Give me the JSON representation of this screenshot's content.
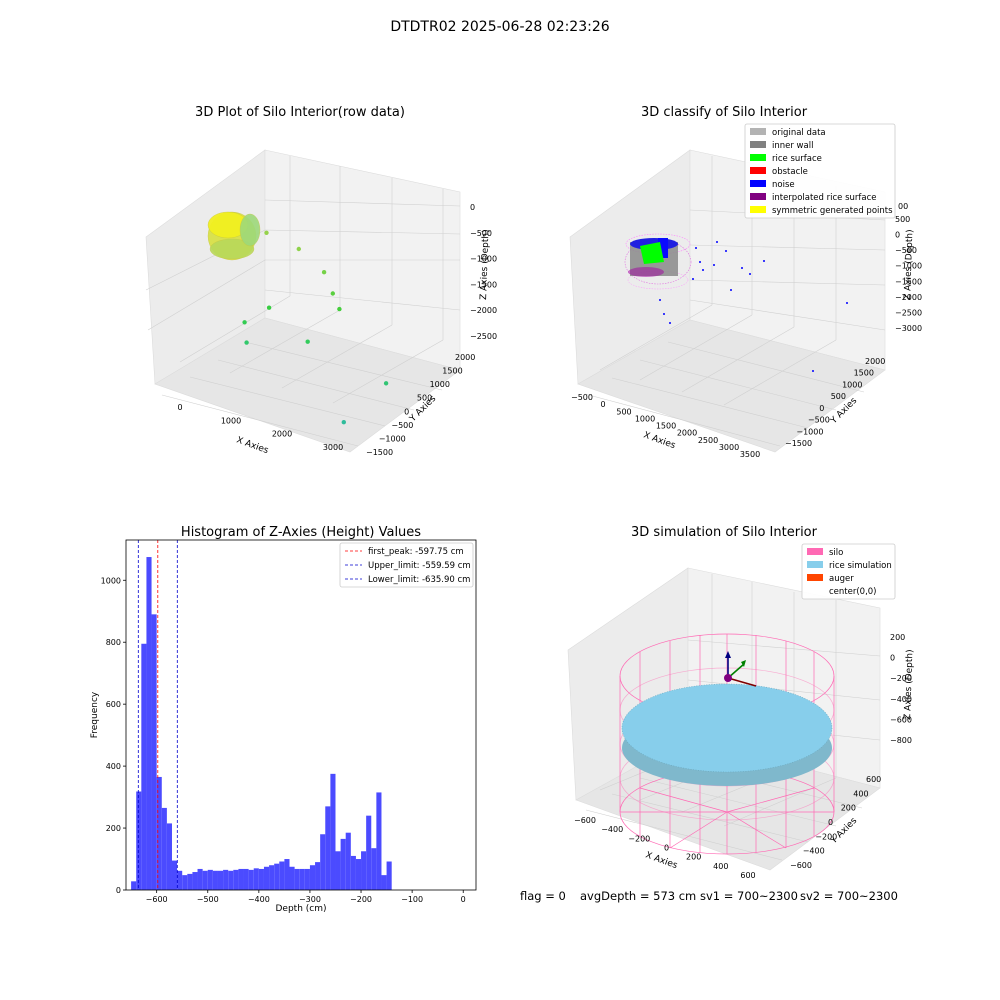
{
  "suptitle": "DTDTR02 2025-06-28 02:23:26",
  "status_bar": {
    "flag": "flag = 0",
    "avg_depth": "avgDepth = 573 cm",
    "sv1": "sv1 = 700~2300",
    "sv2": "sv2 = 700~2300"
  },
  "colors": {
    "original_data": "#b3b3b3",
    "inner_wall": "#808080",
    "rice_surface": "#00ff00",
    "obstacle": "#ff0000",
    "noise": "#0000ff",
    "interpolated_rice_surface": "#800080",
    "symmetric_generated_points": "#ffff00",
    "silo": "#ff69b4",
    "rice_simulation": "#87ceeb",
    "auger": "#ff4500",
    "histogram_bar": "#4b4bff"
  },
  "chart_data": [
    {
      "type": "scatter",
      "title": "3D Plot of Silo Interior(row data)",
      "xlabel": "X Axies",
      "ylabel": "Y Axies",
      "zlabel": "Z Axies (Depth)",
      "x_ticks": [
        "0",
        "1000",
        "2000",
        "3000"
      ],
      "y_ticks": [
        "−1500",
        "−1000",
        "−500",
        "0",
        "500",
        "1000",
        "1500",
        "2000"
      ],
      "z_ticks": [
        "0",
        "−500",
        "−1000",
        "−1500",
        "−2000",
        "−2500"
      ],
      "xlim": [
        -500,
        3800
      ],
      "ylim": [
        -1600,
        2200
      ],
      "zlim": [
        -2800,
        100
      ],
      "colormap": "viridis",
      "points": [
        {
          "x": 150,
          "y": 1300,
          "z": -600
        },
        {
          "x": 900,
          "y": 1200,
          "z": -700
        },
        {
          "x": 1500,
          "y": 1100,
          "z": -950
        },
        {
          "x": 1800,
          "y": 900,
          "z": -1200
        },
        {
          "x": 2000,
          "y": 800,
          "z": -1400
        },
        {
          "x": 600,
          "y": 600,
          "z": -1600
        },
        {
          "x": 300,
          "y": 200,
          "z": -1800
        },
        {
          "x": 400,
          "y": 100,
          "z": -2100
        },
        {
          "x": 1600,
          "y": 300,
          "z": -1900
        },
        {
          "x": 3400,
          "y": 100,
          "z": -2200
        },
        {
          "x": 3000,
          "y": -800,
          "z": -2700
        }
      ]
    },
    {
      "type": "scatter",
      "title": "3D classify of Silo Interior",
      "xlabel": "X Axies",
      "ylabel": "Y Axies",
      "zlabel": "Z Axies (Depth)",
      "x_ticks": [
        "−500",
        "0",
        "500",
        "1000",
        "1500",
        "2000",
        "2500",
        "3000",
        "3500"
      ],
      "y_ticks": [
        "−1500",
        "−1000",
        "−500",
        "0",
        "500",
        "1000",
        "1500",
        "2000"
      ],
      "z_ticks": [
        "500",
        "0",
        "−500",
        "−1000",
        "−1500",
        "−2000",
        "−2500",
        "−3000"
      ],
      "legend": [
        {
          "label": "original data",
          "color": "#b3b3b3"
        },
        {
          "label": "inner wall",
          "color": "#808080"
        },
        {
          "label": "rice surface",
          "color": "#00ff00"
        },
        {
          "label": "obstacle",
          "color": "#ff0000"
        },
        {
          "label": "noise",
          "color": "#0000ff"
        },
        {
          "label": "interpolated rice surface",
          "color": "#800080"
        },
        {
          "label": "symmetric generated points",
          "color": "#ffff00"
        }
      ],
      "legend_extra_tick": "00"
    },
    {
      "type": "bar",
      "title": "Histogram of Z-Axies (Height) Values",
      "xlabel": "Depth (cm)",
      "ylabel": "Frequency",
      "xlim": [
        -660,
        25
      ],
      "ylim": [
        0,
        1130
      ],
      "x_ticks": [
        -600,
        -500,
        -400,
        -300,
        -200,
        -100,
        0
      ],
      "y_ticks": [
        0,
        200,
        400,
        600,
        800,
        1000
      ],
      "bin_start": -650,
      "bin_width": 10,
      "values": [
        28,
        318,
        795,
        1075,
        890,
        365,
        265,
        215,
        95,
        62,
        48,
        52,
        58,
        68,
        62,
        65,
        62,
        62,
        65,
        62,
        65,
        68,
        68,
        65,
        70,
        68,
        75,
        80,
        85,
        92,
        100,
        75,
        68,
        68,
        68,
        80,
        90,
        180,
        270,
        375,
        125,
        165,
        185,
        110,
        100,
        125,
        240,
        135,
        315,
        48,
        92
      ],
      "vlines": [
        {
          "label": "first_peak: -597.75 cm",
          "x": -597.75,
          "color": "#ff0000"
        },
        {
          "label": "Upper_limit: -559.59 cm",
          "x": -559.59,
          "color": "#0000cc"
        },
        {
          "label": "Lower_limit: -635.90 cm",
          "x": -635.9,
          "color": "#0000cc"
        }
      ]
    },
    {
      "type": "scatter",
      "title": "3D simulation of Silo Interior",
      "xlabel": "X Axies",
      "ylabel": "Y Axies",
      "zlabel": "Z Axies (Depth)",
      "x_ticks": [
        "−600",
        "−400",
        "−200",
        "0",
        "200",
        "400",
        "600"
      ],
      "y_ticks": [
        "−600",
        "−400",
        "−200",
        "0",
        "200",
        "400",
        "600"
      ],
      "z_ticks": [
        "200",
        "0",
        "−200",
        "−400",
        "−600",
        "−800"
      ],
      "legend": [
        {
          "label": "silo",
          "color": "#ff69b4"
        },
        {
          "label": "rice simulation",
          "color": "#87ceeb"
        },
        {
          "label": "auger",
          "color": "#ff4500"
        },
        {
          "label": "center(0,0)",
          "color": ""
        }
      ]
    }
  ]
}
